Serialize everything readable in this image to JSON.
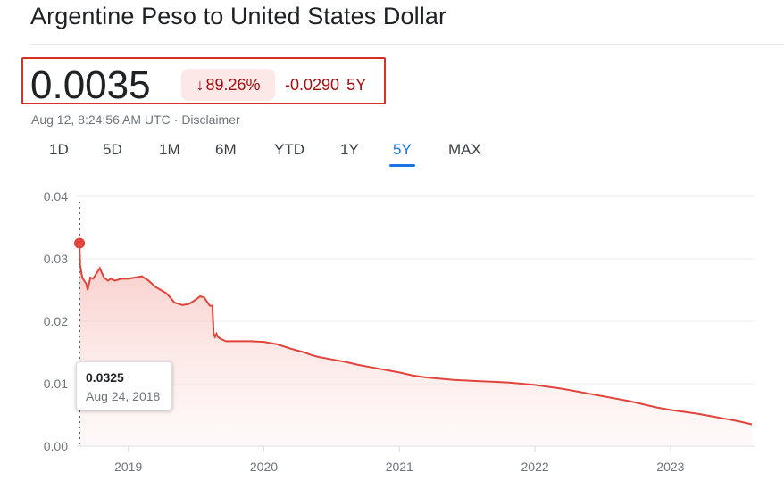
{
  "header": {
    "title": "Argentine Peso to United States Dollar"
  },
  "quote": {
    "price": "0.0035",
    "change_arrow": "↓",
    "change_percent": "89.26%",
    "change_abs": "-0.0290",
    "change_period": "5Y",
    "negative_color": "#a50e0e",
    "timestamp": "Aug 12, 8:24:56 AM UTC",
    "separator": "·",
    "disclaimer": "Disclaimer"
  },
  "tabs": [
    {
      "label": "1D",
      "active": false
    },
    {
      "label": "5D",
      "active": false
    },
    {
      "label": "1M",
      "active": false
    },
    {
      "label": "6M",
      "active": false
    },
    {
      "label": "YTD",
      "active": false
    },
    {
      "label": "1Y",
      "active": false
    },
    {
      "label": "5Y",
      "active": true
    },
    {
      "label": "MAX",
      "active": false
    }
  ],
  "tooltip": {
    "value": "0.0325",
    "date": "Aug 24, 2018"
  },
  "chart_data": {
    "type": "area",
    "title": "",
    "xlabel": "",
    "ylabel": "",
    "ylim": [
      0,
      0.04
    ],
    "yticks": [
      "0.04",
      "0.03",
      "0.02",
      "0.01",
      "0.00"
    ],
    "xticks": [
      "2019",
      "2020",
      "2021",
      "2022",
      "2023"
    ],
    "xlim": [
      2018.62,
      2023.62
    ],
    "grid": true,
    "line_color": "#e0443a",
    "series": [
      {
        "x": [
          2018.64,
          2018.645,
          2018.66,
          2018.675,
          2018.69,
          2018.7,
          2018.72,
          2018.74,
          2018.76,
          2018.79,
          2018.82,
          2018.85,
          2018.87,
          2018.9,
          2018.95,
          2019.0,
          2019.05,
          2019.1,
          2019.15,
          2019.2,
          2019.24,
          2019.28,
          2019.31,
          2019.34,
          2019.37,
          2019.4,
          2019.45,
          2019.5,
          2019.53,
          2019.56,
          2019.6,
          2019.62,
          2019.63,
          2019.64,
          2019.65,
          2019.66,
          2019.68,
          2019.72,
          2019.8,
          2019.9,
          2020.0,
          2020.1,
          2020.2,
          2020.3,
          2020.35,
          2020.4,
          2020.5,
          2020.6,
          2020.7,
          2020.8,
          2020.9,
          2021.0,
          2021.1,
          2021.2,
          2021.3,
          2021.4,
          2021.5,
          2021.6,
          2021.7,
          2021.8,
          2021.9,
          2022.0,
          2022.1,
          2022.2,
          2022.3,
          2022.4,
          2022.5,
          2022.6,
          2022.7,
          2022.8,
          2022.9,
          2023.0,
          2023.1,
          2023.2,
          2023.3,
          2023.4,
          2023.5,
          2023.6
        ],
        "y": [
          0.0325,
          0.029,
          0.027,
          0.0265,
          0.026,
          0.025,
          0.027,
          0.0268,
          0.0275,
          0.0285,
          0.027,
          0.0265,
          0.0268,
          0.0265,
          0.0268,
          0.0268,
          0.027,
          0.0272,
          0.0265,
          0.0255,
          0.025,
          0.0245,
          0.0238,
          0.023,
          0.0228,
          0.0226,
          0.0228,
          0.0235,
          0.024,
          0.0238,
          0.0225,
          0.0225,
          0.018,
          0.0175,
          0.018,
          0.0175,
          0.0172,
          0.0168,
          0.0168,
          0.0168,
          0.0167,
          0.0163,
          0.0156,
          0.015,
          0.0146,
          0.0143,
          0.0139,
          0.0135,
          0.013,
          0.0126,
          0.0122,
          0.0118,
          0.0113,
          0.011,
          0.0108,
          0.0106,
          0.0105,
          0.0104,
          0.0103,
          0.0102,
          0.01,
          0.0098,
          0.0095,
          0.0092,
          0.0088,
          0.0084,
          0.008,
          0.0076,
          0.0072,
          0.0067,
          0.0062,
          0.0058,
          0.0055,
          0.0052,
          0.0048,
          0.0044,
          0.004,
          0.0035
        ]
      }
    ],
    "highlight_point": {
      "x": 2018.64,
      "y": 0.0325
    }
  }
}
